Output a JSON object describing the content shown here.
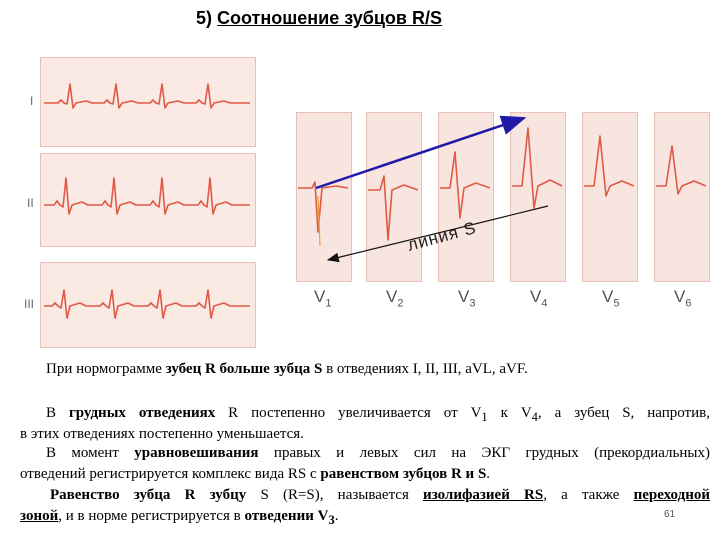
{
  "title": {
    "prefix": "5) ",
    "text": "Соотношение зубцов R/S"
  },
  "limb_leads": [
    "I",
    "II",
    "III"
  ],
  "chest_leads": [
    "V",
    "V",
    "V",
    "V",
    "V",
    "V"
  ],
  "chest_lead_subs": [
    "1",
    "2",
    "3",
    "4",
    "5",
    "6"
  ],
  "annotation": "линия S",
  "colors": {
    "ecg_trace": "#e05a45",
    "grid_bg": "#fbe9e4",
    "arrow": "#1f1aa8"
  },
  "paragraphs": {
    "p1": {
      "a": "При нормограмме ",
      "b": "зубец R больше зубца S",
      "c": " в отведениях I, II, III, aVL, aVF."
    },
    "p2": {
      "a": "В ",
      "b": "грудных отведениях",
      "c": " R постепенно увеличивается от V",
      "sub1": "1",
      "d": "  к V",
      "sub2": "4",
      "e": ", а зубец S, напротив,",
      "f": "в этих отведениях постепенно уменьшается."
    },
    "p3": {
      "a": "В момент ",
      "b": "уравновешивания",
      "c": " правых и левых сил на ЭКГ грудных (прекордиальных)",
      "d": "отведений регистрируется комплекс вида RS с ",
      "e": "равенством зубцов R и S",
      "f": "."
    },
    "p4": {
      "a": "Равенство зубца R зубцу",
      "b": " S (R=S), называется ",
      "c": "изолифазией RS",
      "d": ", а также ",
      "e": "переходной",
      "f": "зоной",
      "g": ", и в норме регистрируется в ",
      "h": "отведении V",
      "sub": "3",
      "i": "."
    }
  },
  "page_number": "61"
}
